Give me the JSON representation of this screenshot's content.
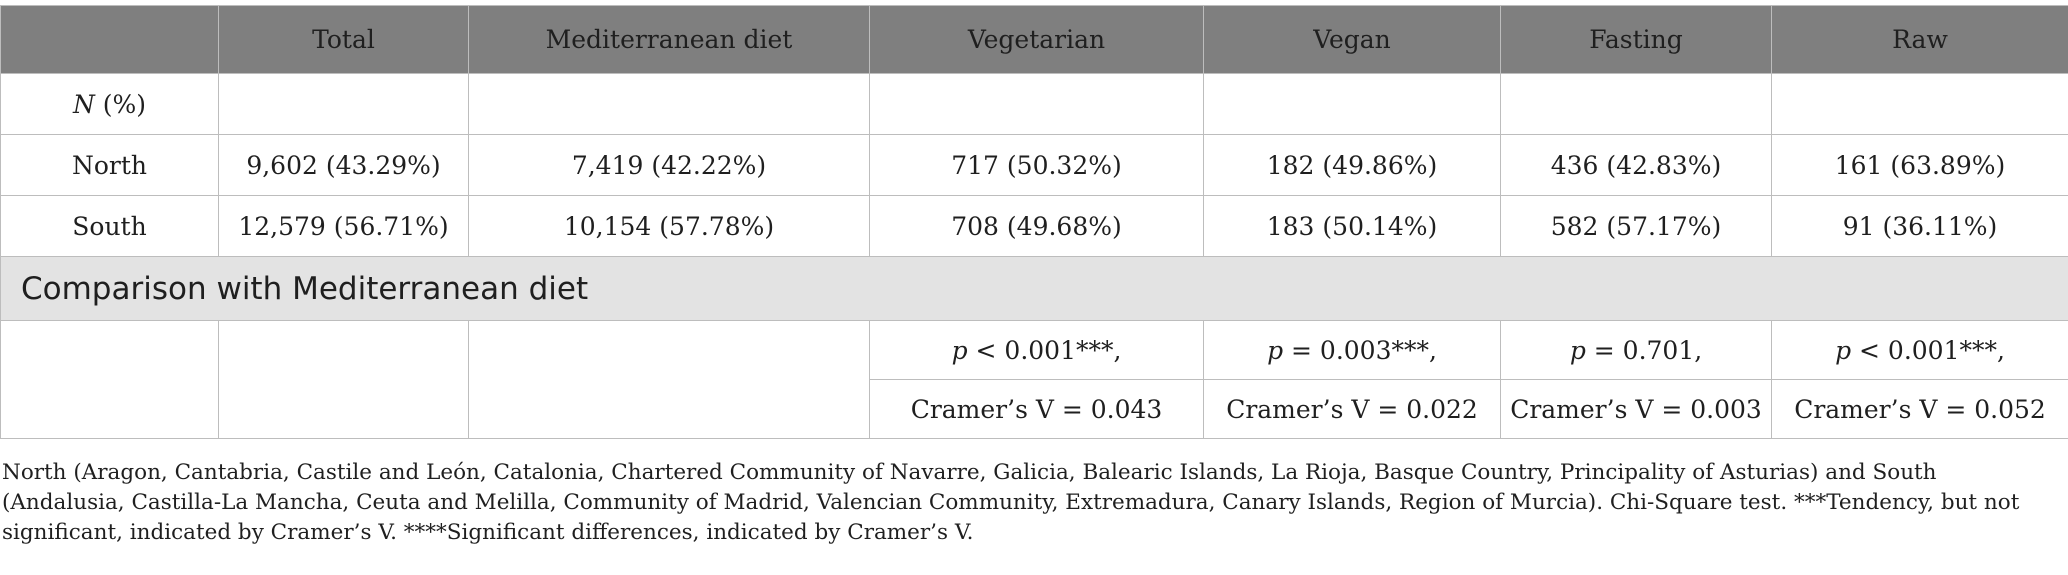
{
  "header": [
    "",
    "Total",
    "Mediterranean diet",
    "Vegetarian",
    "Vegan",
    "Fasting",
    "Raw"
  ],
  "rows": [
    {
      "label_italic": "N",
      "label_rest": " (%)",
      "cells": [
        "",
        "",
        "",
        "",
        "",
        ""
      ]
    },
    {
      "label": "North",
      "cells": [
        "9,602 (43.29%)",
        "7,419 (42.22%)",
        "717 (50.32%)",
        "182 (49.86%)",
        "436 (42.83%)",
        "161 (63.89%)"
      ]
    },
    {
      "label": "South",
      "cells": [
        "12,579 (56.71%)",
        "10,154 (57.78%)",
        "708 (49.68%)",
        "183 (50.14%)",
        "582 (57.17%)",
        "91 (36.11%)"
      ]
    }
  ],
  "section_title": "Comparison with Mediterranean diet",
  "comparison": {
    "pvals": [
      {
        "p": "p",
        "rest": " < 0.001***,"
      },
      {
        "p": "p",
        "rest": " = 0.003***,"
      },
      {
        "p": "p",
        "rest": " = 0.701,"
      },
      {
        "p": "p",
        "rest": " < 0.001***,"
      }
    ],
    "cramers": [
      "Cramer’s V = 0.043",
      "Cramer’s V = 0.022",
      "Cramer’s V = 0.003",
      "Cramer’s V = 0.052"
    ]
  },
  "footnote": "North (Aragon, Cantabria, Castile and León, Catalonia, Chartered Community of Navarre, Galicia, Balearic Islands, La Rioja, Basque Country, Principality of Asturias) and South (Andalusia, Castilla-La Mancha, Ceuta and Melilla, Community of Madrid, Valencian Community, Extremadura, Canary Islands, Region of Murcia). Chi-Square test. ***Tendency, but not significant, indicated by Cramer’s V. ****Significant differences, indicated by Cramer’s V."
}
